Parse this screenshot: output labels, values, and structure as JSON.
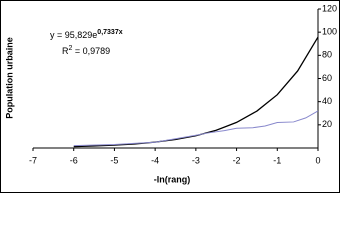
{
  "chart_data": {
    "type": "line",
    "annotations": [
      "y = 95,829e",
      "0,7337x",
      "R",
      "2",
      " = 0,9789"
    ],
    "y_label": "Population urbaine",
    "x_label": "-ln(rang)",
    "xlim": [
      -7,
      0
    ],
    "xticks": [
      -7,
      -6,
      -5,
      -4,
      -3,
      -2,
      -1,
      0
    ],
    "ylim": [
      0,
      120
    ],
    "yticks": [
      20,
      40,
      60,
      80,
      100,
      120
    ],
    "series": [
      {
        "color": "#000000",
        "x": [
          -6,
          -5.5,
          -5,
          -4.5,
          -4,
          -3.5,
          -3,
          -2.5,
          -2,
          -1.5,
          -1,
          -0.5,
          0
        ],
        "values": [
          1.2,
          1.7,
          2.5,
          3.5,
          5.1,
          7.4,
          10.6,
          15.3,
          22.1,
          31.9,
          46.0,
          66.5,
          95.8
        ]
      },
      {
        "color": "#8888cc",
        "x": [
          -6,
          -5,
          -4,
          -3.5,
          -3,
          -2.7,
          -2.3,
          -2,
          -1.6,
          -1.3,
          -1,
          -0.6,
          -0.3,
          0
        ],
        "values": [
          2,
          3,
          5,
          8,
          11,
          13,
          15,
          17,
          17.5,
          19,
          22,
          22.5,
          26,
          32
        ]
      }
    ]
  }
}
